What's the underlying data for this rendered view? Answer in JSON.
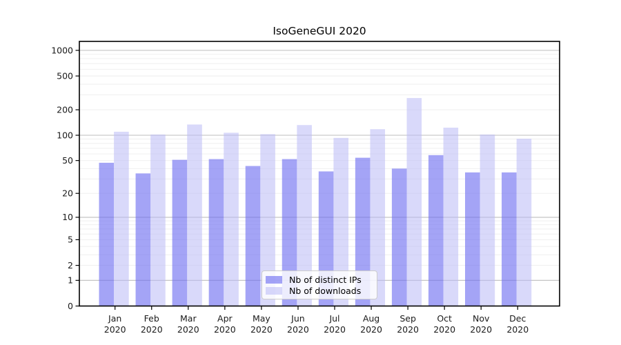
{
  "chart_data": {
    "type": "bar",
    "title": "IsoGeneGUI 2020",
    "year": "2020",
    "categories": [
      "Jan",
      "Feb",
      "Mar",
      "Apr",
      "May",
      "Jun",
      "Jul",
      "Aug",
      "Sep",
      "Oct",
      "Nov",
      "Dec"
    ],
    "series": [
      {
        "name": "Nb of distinct IPs",
        "color": "rgba(108,108,240,0.62)",
        "values": [
          47,
          35,
          51,
          52,
          43,
          52,
          37,
          54,
          40,
          58,
          36,
          36
        ]
      },
      {
        "name": "Nb of downloads",
        "color": "rgba(185,185,246,0.55)",
        "values": [
          110,
          102,
          134,
          107,
          103,
          132,
          93,
          118,
          275,
          123,
          102,
          91
        ]
      }
    ],
    "y_ticks": [
      0,
      1,
      2,
      5,
      10,
      20,
      50,
      100,
      200,
      500,
      1000
    ],
    "y_scale": "log1p",
    "ylim": [
      0,
      1275
    ],
    "grid": true,
    "legend_position": "lower center"
  },
  "style": {
    "background": "#ffffff",
    "axis_color": "#000000",
    "text_color": "#1a1a1a",
    "major_grid_color": "#bdbdbd",
    "minor_grid_color": "#ededed"
  }
}
